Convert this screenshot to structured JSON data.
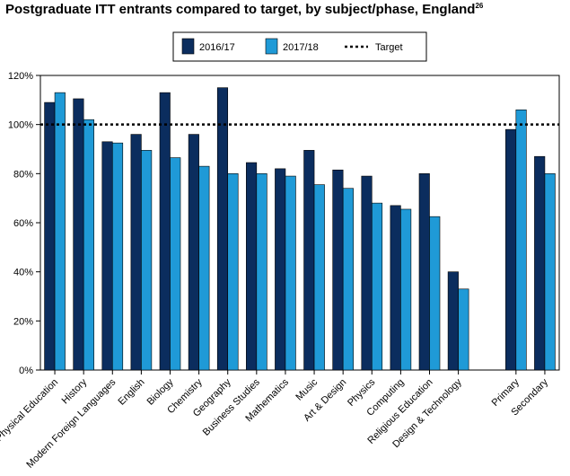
{
  "chart_data": {
    "type": "bar",
    "title": "Postgraduate ITT entrants compared to target, by subject/phase, England",
    "title_footnote": "26",
    "categories": [
      "Physical Education",
      "History",
      "Modern Foreign Languages",
      "English",
      "Biology",
      "Chemistry",
      "Geography",
      "Business Studies",
      "Mathematics",
      "Music",
      "Art & Design",
      "Physics",
      "Computing",
      "Religious Education",
      "Design & Technology",
      "",
      "Primary",
      "Secondary"
    ],
    "series": [
      {
        "name": "2016/17",
        "color": "#0b2d5e",
        "values": [
          109,
          110.5,
          93,
          96,
          113,
          96,
          115,
          84.5,
          82,
          89.5,
          81.5,
          79,
          67,
          80,
          40,
          null,
          98,
          87
        ]
      },
      {
        "name": "2017/18",
        "color": "#1f9ad7",
        "values": [
          113,
          102,
          92.5,
          89.5,
          86.5,
          83,
          80,
          80,
          79,
          75.5,
          74,
          68,
          65.5,
          62.5,
          33,
          null,
          106,
          80
        ]
      }
    ],
    "target": {
      "name": "Target",
      "value": 100,
      "style": "dotted"
    },
    "yticks": [
      "0%",
      "20%",
      "40%",
      "60%",
      "80%",
      "100%",
      "120%"
    ],
    "ylim": [
      0,
      120
    ],
    "grid": false,
    "legend_position": "top-center"
  }
}
